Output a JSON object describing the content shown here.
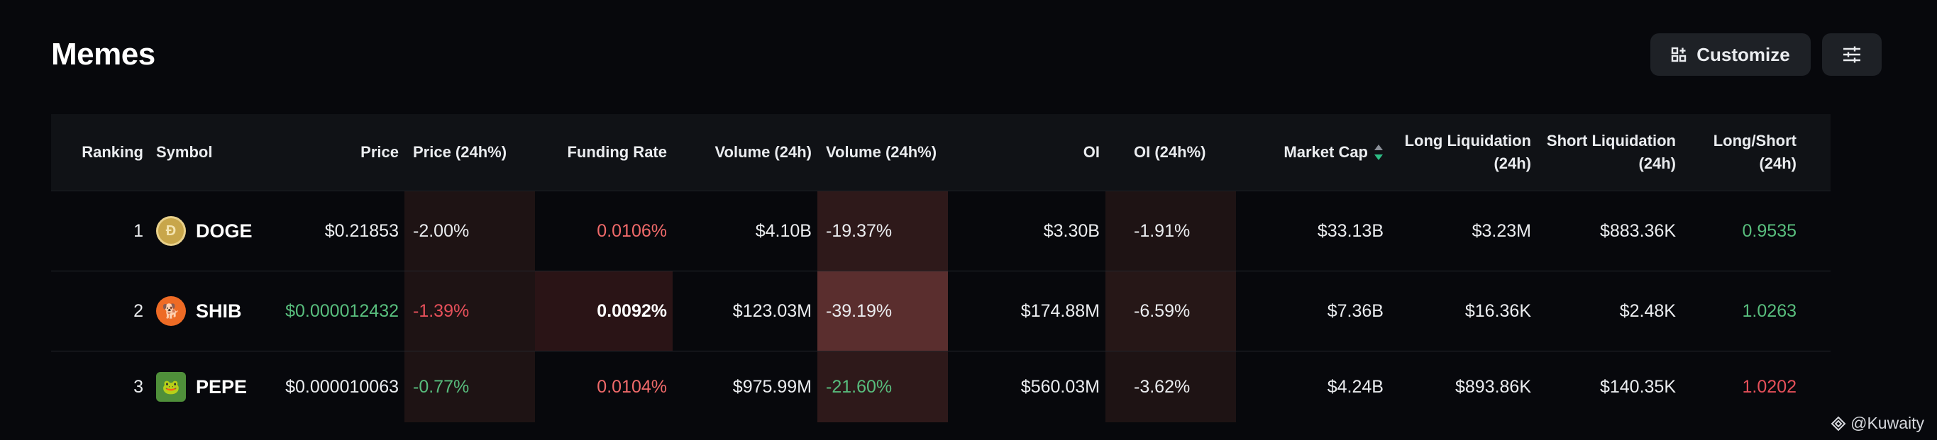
{
  "page": {
    "title": "Memes"
  },
  "toolbar": {
    "customize_label": "Customize"
  },
  "table": {
    "headers": {
      "ranking": "Ranking",
      "symbol": "Symbol",
      "price": "Price",
      "price_change": "Price (24h%)",
      "funding_rate": "Funding Rate",
      "volume": "Volume (24h)",
      "volume_change": "Volume (24h%)",
      "oi": "OI",
      "oi_change": "OI (24h%)",
      "market_cap": "Market Cap",
      "long_liq": "Long Liquidation (24h)",
      "short_liq": "Short Liquidation (24h)",
      "long_short": "Long/Short (24h)"
    },
    "rows": [
      {
        "rank": "1",
        "symbol": "DOGE",
        "icon": "doge-coin-icon",
        "price": "$0.21853",
        "price_change": "-2.00%",
        "funding_rate": "0.0106%",
        "volume": "$4.10B",
        "volume_change": "-19.37%",
        "oi": "$3.30B",
        "oi_change": "-1.91%",
        "market_cap": "$33.13B",
        "long_liq": "$3.23M",
        "short_liq": "$883.36K",
        "long_short": "0.9535"
      },
      {
        "rank": "2",
        "symbol": "SHIB",
        "icon": "shib-coin-icon",
        "price": "$0.000012432",
        "price_change": "-1.39%",
        "funding_rate": "0.0092%",
        "volume": "$123.03M",
        "volume_change": "-39.19%",
        "oi": "$174.88M",
        "oi_change": "-6.59%",
        "market_cap": "$7.36B",
        "long_liq": "$16.36K",
        "short_liq": "$2.48K",
        "long_short": "1.0263"
      },
      {
        "rank": "3",
        "symbol": "PEPE",
        "icon": "pepe-coin-icon",
        "price": "$0.000010063",
        "price_change": "-0.77%",
        "funding_rate": "0.0104%",
        "volume": "$975.99M",
        "volume_change": "-21.60%",
        "oi": "$560.03M",
        "oi_change": "-3.62%",
        "market_cap": "$4.24B",
        "long_liq": "$893.86K",
        "short_liq": "$140.35K",
        "long_short": "1.0202"
      }
    ]
  },
  "colors": {
    "background": "#07080c",
    "header_bg": "#101216",
    "positive": "#58bd7d",
    "negative": "#e6505a",
    "heat_dark": "#1e1314",
    "heat_medium": "#2e191a",
    "heat_strong": "#5a2e2e"
  },
  "watermark": {
    "text": "@Kuwaity"
  }
}
